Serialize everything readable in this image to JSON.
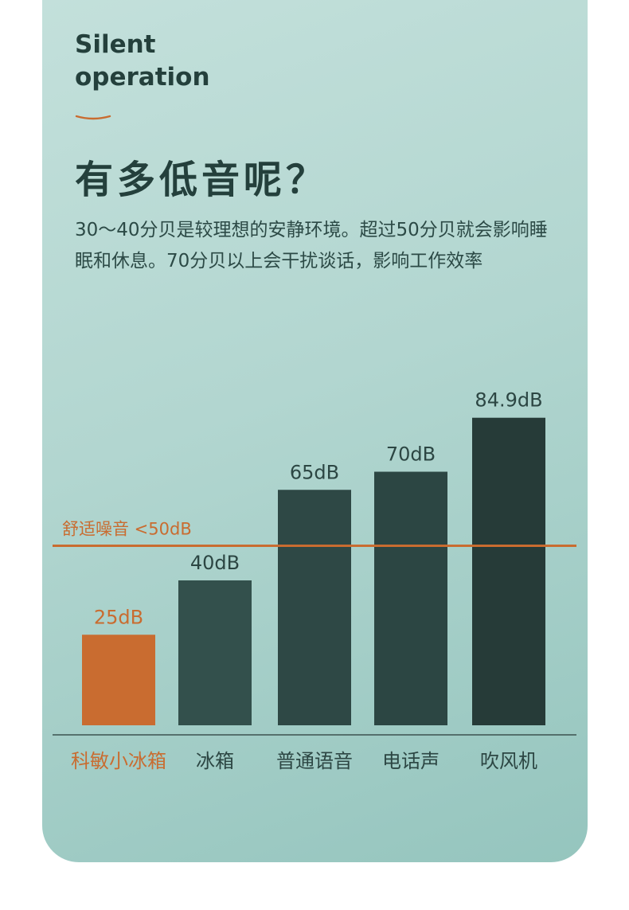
{
  "header": {
    "title_en_line1": "Silent",
    "title_en_line2": "operation",
    "title_zh": "有多低音呢？",
    "intro": "30～40分贝是较理想的安静环境。超过50分贝就会影响睡眠和休息。70分贝以上会干扰谈话，影响工作效率"
  },
  "colors": {
    "highlight": "#c96c30",
    "bar_dark": "#2d4744",
    "title": "#24403c"
  },
  "chart_data": {
    "type": "bar",
    "categories": [
      "科敏小冰箱",
      "冰箱",
      "普通语音",
      "电话声",
      "吹风机"
    ],
    "values": [
      25,
      40,
      65,
      70,
      84.9
    ],
    "value_labels": [
      "25dB",
      "40dB",
      "65dB",
      "70dB",
      "84.9dB"
    ],
    "bar_colors": [
      "#c96c30",
      "#33504c",
      "#2e4845",
      "#2c4643",
      "#263b38"
    ],
    "highlight_index": 0,
    "unit": "dB",
    "ylim": [
      0,
      100
    ],
    "reference_line": {
      "value": 50,
      "label": "舒适噪音 <50dB"
    },
    "title": "",
    "xlabel": "",
    "ylabel": ""
  }
}
